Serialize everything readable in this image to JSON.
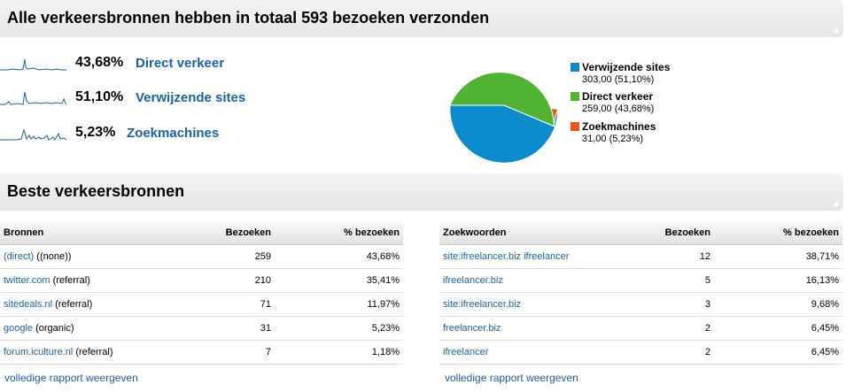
{
  "overview": {
    "title": "Alle verkeersbronnen hebben in totaal 593 bezoeken verzonden",
    "sources": [
      {
        "percent": "43,68%",
        "label": "Direct verkeer"
      },
      {
        "percent": "51,10%",
        "label": "Verwijzende sites"
      },
      {
        "percent": "5,23%",
        "label": "Zoekmachines"
      }
    ]
  },
  "chart_data": {
    "type": "pie",
    "series": [
      {
        "name": "Verwijzende sites",
        "value": 303,
        "value_text": "303,00 (51,10%)",
        "color": "#0a8ccd"
      },
      {
        "name": "Direct verkeer",
        "value": 259,
        "value_text": "259,00 (43,68%)",
        "color": "#50b432"
      },
      {
        "name": "Zoekmachines",
        "value": 31,
        "value_text": "31,00 (5,23%)",
        "color": "#ed561b"
      }
    ]
  },
  "best": {
    "title": "Beste verkeersbronnen"
  },
  "sources_table": {
    "headers": [
      "Bronnen",
      "Bezoeken",
      "% bezoeken"
    ],
    "rows": [
      {
        "source": "(direct)",
        "medium": "((none))",
        "visits": "259",
        "pct": "43,68%"
      },
      {
        "source": "twitter.com",
        "medium": "(referral)",
        "visits": "210",
        "pct": "35,41%"
      },
      {
        "source": "sitedeals.nl",
        "medium": "(referral)",
        "visits": "71",
        "pct": "11,97%"
      },
      {
        "source": "google",
        "medium": "(organic)",
        "visits": "31",
        "pct": "5,23%"
      },
      {
        "source": "forum.iculture.nl",
        "medium": "(referral)",
        "visits": "7",
        "pct": "1,18%"
      }
    ],
    "report_link": "volledige rapport weergeven"
  },
  "keywords_table": {
    "headers": [
      "Zoekwoorden",
      "Bezoeken",
      "% bezoeken"
    ],
    "rows": [
      {
        "keyword": "site:ifreelancer.biz ifreelancer",
        "visits": "12",
        "pct": "38,71%"
      },
      {
        "keyword": "ifreelancer.biz",
        "visits": "5",
        "pct": "16,13%"
      },
      {
        "keyword": "site:ifreelancer.biz",
        "visits": "3",
        "pct": "9,68%"
      },
      {
        "keyword": "freelancer.biz",
        "visits": "2",
        "pct": "6,45%"
      },
      {
        "keyword": "ifreelancer",
        "visits": "2",
        "pct": "6,45%"
      }
    ],
    "report_link": "volledige rapport weergeven"
  }
}
